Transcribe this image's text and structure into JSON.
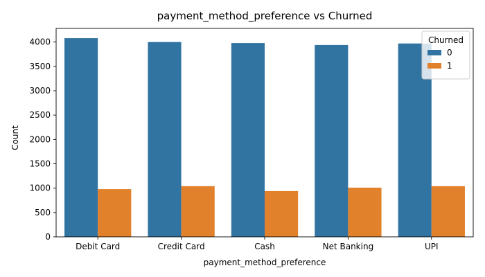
{
  "chart_data": {
    "type": "bar",
    "title": "payment_method_preference vs Churned",
    "xlabel": "payment_method_preference",
    "ylabel": "Count",
    "categories": [
      "Debit Card",
      "Credit Card",
      "Cash",
      "Net Banking",
      "UPI"
    ],
    "series": [
      {
        "name": "0",
        "values": [
          4080,
          4000,
          3980,
          3940,
          3970
        ],
        "color": "#3274a1"
      },
      {
        "name": "1",
        "values": [
          980,
          1040,
          940,
          1010,
          1040
        ],
        "color": "#e1812c"
      }
    ],
    "ylim": [
      0,
      4280
    ],
    "yticks": [
      0,
      500,
      1000,
      1500,
      2000,
      2500,
      3000,
      3500,
      4000
    ],
    "grid": false,
    "legend": {
      "title": "Churned",
      "placement": "top-right"
    }
  }
}
